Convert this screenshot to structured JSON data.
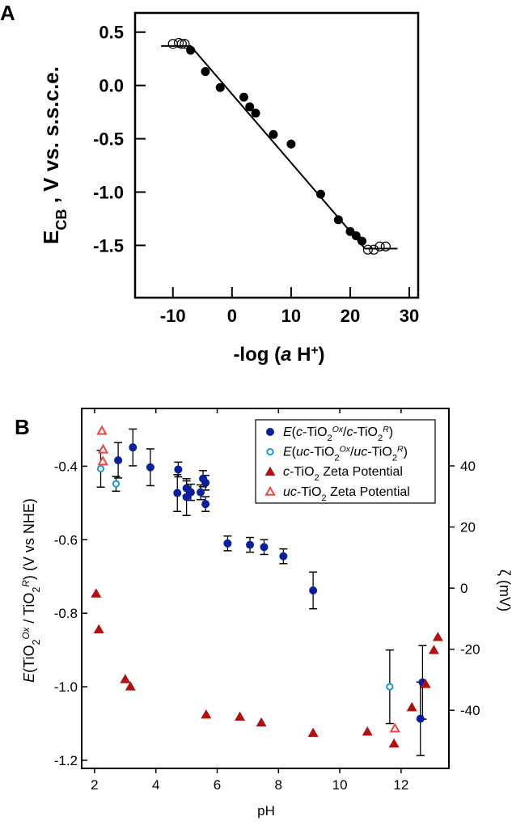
{
  "chart_data": [
    {
      "panel": "A",
      "type": "scatter",
      "panel_label": "A",
      "xlabel_parts": [
        {
          "t": "-log (",
          "s": "n"
        },
        {
          "t": "a",
          "s": "i"
        },
        {
          "t": " H",
          "s": "n"
        },
        {
          "t": "+",
          "s": "sup"
        },
        {
          "t": ")",
          "s": "n"
        }
      ],
      "ylabel_parts": [
        {
          "t": "E",
          "s": "n"
        },
        {
          "t": "CB",
          "s": "sub"
        },
        {
          "t": " , V vs. s.s.c.e.",
          "s": "n"
        }
      ],
      "xlim": [
        -16.4,
        31.5
      ],
      "ylim": [
        -1.99,
        0.68
      ],
      "xticks": [
        -10,
        0,
        10,
        20,
        30
      ],
      "xtick_labels": [
        "-10",
        "0",
        "10",
        "20",
        "30"
      ],
      "yticks": [
        0.5,
        0.0,
        -0.5,
        -1.0,
        -1.5
      ],
      "ytick_labels": [
        "0.5",
        "0.0",
        "-0.5",
        "-1.0",
        "-1.5"
      ],
      "grid": false,
      "series": [
        {
          "name": "filled",
          "marker": "filled-circle",
          "color": "#000000",
          "x": [
            -7,
            -4.5,
            -2,
            2,
            3,
            4,
            7,
            10,
            15,
            18,
            20,
            21,
            22
          ],
          "y": [
            0.33,
            0.13,
            -0.02,
            -0.11,
            -0.2,
            -0.26,
            -0.46,
            -0.55,
            -1.02,
            -1.26,
            -1.37,
            -1.41,
            -1.46
          ]
        },
        {
          "name": "open",
          "marker": "open-circle",
          "color": "#000000",
          "x": [
            -10,
            -9,
            -8.5,
            -8,
            23,
            24,
            25,
            26
          ],
          "y": [
            0.39,
            0.4,
            0.39,
            0.39,
            -1.54,
            -1.54,
            -1.51,
            -1.51
          ]
        },
        {
          "name": "fit",
          "marker": "line",
          "color": "#000000",
          "x": [
            -12,
            -7,
            22.5,
            28
          ],
          "y": [
            0.37,
            0.37,
            -1.53,
            -1.53
          ]
        }
      ]
    },
    {
      "panel": "B",
      "type": "scatter",
      "panel_label": "B",
      "xlabel": "pH",
      "ylabel_parts": [
        {
          "t": "E",
          "s": "i"
        },
        {
          "t": "(TiO",
          "s": "n"
        },
        {
          "t": "2",
          "s": "sub"
        },
        {
          "t": "Ox",
          "s": "supi"
        },
        {
          "t": " / TiO",
          "s": "n"
        },
        {
          "t": "2",
          "s": "sub"
        },
        {
          "t": "R",
          "s": "supi"
        },
        {
          "t": ")  (V vs NHE)",
          "s": "n"
        }
      ],
      "y2label": "ζ (mV)",
      "xlim": [
        1.58,
        13.56
      ],
      "ylim": [
        -1.222,
        -0.243
      ],
      "y2lim": [
        -59,
        58.8
      ],
      "xticks": [
        2,
        4,
        6,
        8,
        10,
        12
      ],
      "xtick_labels": [
        "2",
        "4",
        "6",
        "8",
        "10",
        "12"
      ],
      "yticks": [
        -0.4,
        -0.6,
        -0.8,
        -1.0,
        -1.2
      ],
      "ytick_labels": [
        "-0.4",
        "-0.6",
        "-0.8",
        "-1.0",
        "-1.2"
      ],
      "y2ticks": [
        40,
        20,
        0,
        -20,
        -40
      ],
      "y2tick_labels": [
        "40",
        "20",
        "0",
        "-20",
        "-40"
      ],
      "grid": false,
      "legend_position": "top-right",
      "series": [
        {
          "name": "E(c-TiO2Ox/c-TiO2R)",
          "axis": "left",
          "marker": "filled-circle",
          "color": "#0a1f9c",
          "legend_parts": [
            {
              "t": "E",
              "s": "i"
            },
            {
              "t": "(",
              "s": "n"
            },
            {
              "t": "c",
              "s": "i"
            },
            {
              "t": "-TiO",
              "s": "n"
            },
            {
              "t": "2",
              "s": "sub"
            },
            {
              "t": "Ox",
              "s": "supi"
            },
            {
              "t": "/",
              "s": "n"
            },
            {
              "t": "c",
              "s": "i"
            },
            {
              "t": "-TiO",
              "s": "n"
            },
            {
              "t": "2",
              "s": "sub"
            },
            {
              "t": "R",
              "s": "supi"
            },
            {
              "t": ")",
              "s": "n"
            }
          ],
          "x": [
            2.77,
            3.25,
            3.82,
            4.7,
            4.73,
            5.0,
            5.0,
            5.14,
            5.46,
            5.54,
            5.62,
            5.62,
            6.34,
            7.07,
            7.53,
            8.16,
            9.13,
            12.63,
            12.7
          ],
          "y": [
            -0.384,
            -0.349,
            -0.403,
            -0.473,
            -0.409,
            -0.46,
            -0.484,
            -0.471,
            -0.471,
            -0.434,
            -0.445,
            -0.503,
            -0.61,
            -0.614,
            -0.62,
            -0.645,
            -0.738,
            -1.087,
            -0.988
          ],
          "err": [
            0.048,
            0.05,
            0.05,
            0.05,
            0.02,
            0.02,
            0.05,
            0.022,
            0.02,
            0.022,
            0.02,
            0.02,
            0.02,
            0.02,
            0.02,
            0.02,
            0.05,
            0.1,
            0.1
          ]
        },
        {
          "name": "E(uc-TiO2Ox/uc-TiO2R)",
          "axis": "left",
          "marker": "open-circle",
          "color": "#1a9ad6",
          "legend_parts": [
            {
              "t": "E",
              "s": "i"
            },
            {
              "t": "(",
              "s": "n"
            },
            {
              "t": "uc",
              "s": "i"
            },
            {
              "t": "-TiO",
              "s": "n"
            },
            {
              "t": "2",
              "s": "sub"
            },
            {
              "t": "Ox",
              "s": "supi"
            },
            {
              "t": "/",
              "s": "n"
            },
            {
              "t": "uc",
              "s": "i"
            },
            {
              "t": "-TiO",
              "s": "n"
            },
            {
              "t": "2",
              "s": "sub"
            },
            {
              "t": "R",
              "s": "supi"
            },
            {
              "t": ")",
              "s": "n"
            }
          ],
          "x": [
            2.2,
            2.7,
            11.63
          ],
          "y": [
            -0.407,
            -0.448,
            -1.0
          ],
          "err": [
            0.05,
            0.02,
            0.1
          ]
        },
        {
          "name": "c-TiO2 Zeta Potential",
          "axis": "right",
          "marker": "filled-triangle",
          "color": "#b01010",
          "legend_parts": [
            {
              "t": " c",
              "s": "i"
            },
            {
              "t": "-TiO",
              "s": "n"
            },
            {
              "t": "2",
              "s": "sub"
            },
            {
              "t": " Zeta Potential",
              "s": "n"
            }
          ],
          "x": [
            2.05,
            2.14,
            3.0,
            3.17,
            5.64,
            6.74,
            7.44,
            9.13,
            10.9,
            11.77,
            12.35,
            12.8,
            13.07,
            13.2
          ],
          "y": [
            -1.8,
            -13.5,
            -29.8,
            -32.2,
            -41.4,
            -42.1,
            -44,
            -47.4,
            -47,
            -50.9,
            -39,
            -31.4,
            -20.3,
            -16
          ]
        },
        {
          "name": "uc-TiO2 Zeta Potential",
          "axis": "right",
          "marker": "open-triangle",
          "color": "#f04545",
          "legend_parts": [
            {
              "t": "uc",
              "s": "i"
            },
            {
              "t": "-TiO",
              "s": "n"
            },
            {
              "t": "2",
              "s": "sub"
            },
            {
              "t": " Zeta Potential",
              "s": "n"
            }
          ],
          "x": [
            2.24,
            2.28,
            2.27,
            11.8
          ],
          "y": [
            51.5,
            45.4,
            41.5,
            -45.9
          ]
        }
      ]
    }
  ]
}
